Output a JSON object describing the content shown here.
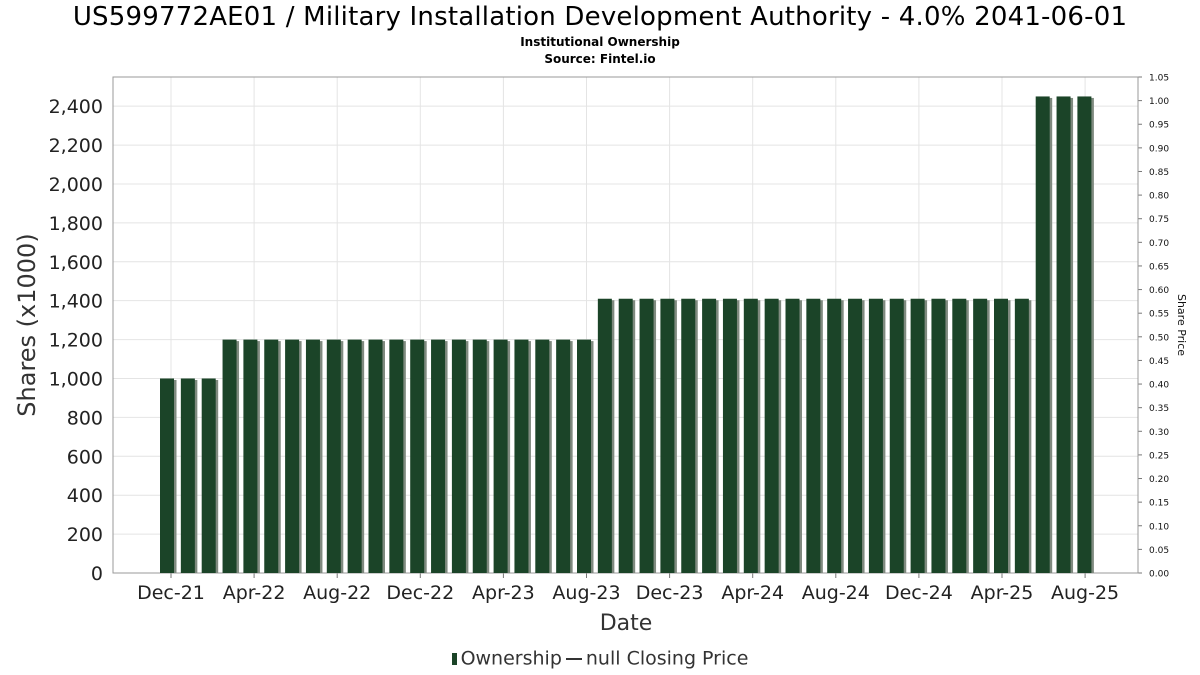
{
  "title": "US599772AE01 / Military Installation Development Authority - 4.0% 2041-06-01",
  "subtitle": "Institutional Ownership",
  "source": "Source: Fintel.io",
  "legend": {
    "ownership": "Ownership",
    "price": "null Closing Price"
  },
  "colors": {
    "bar": "#1b4428",
    "bar_shadow": "#7f8a7f",
    "grid": "#e4e4e4"
  },
  "chart_data": {
    "type": "bar",
    "xlabel": "Date",
    "ylabel": "Shares (x1000)",
    "y2label": "Share Price",
    "ylim": [
      0,
      2550
    ],
    "y2lim": [
      0,
      1.05
    ],
    "yticks": [
      "0",
      "200",
      "400",
      "600",
      "800",
      "1,000",
      "1,200",
      "1,400",
      "1,600",
      "1,800",
      "2,000",
      "2,200",
      "2,400"
    ],
    "y2ticks": [
      "0.00",
      "0.05",
      "0.10",
      "0.15",
      "0.20",
      "0.25",
      "0.30",
      "0.35",
      "0.40",
      "0.45",
      "0.50",
      "0.55",
      "0.60",
      "0.65",
      "0.70",
      "0.75",
      "0.80",
      "0.85",
      "0.90",
      "0.95",
      "1.00",
      "1.05"
    ],
    "xticks": [
      "Dec-21",
      "Apr-22",
      "Aug-22",
      "Dec-22",
      "Apr-23",
      "Aug-23",
      "Dec-23",
      "Apr-24",
      "Aug-24",
      "Dec-24",
      "Apr-25",
      "Aug-25"
    ],
    "series": [
      {
        "name": "Ownership",
        "values": [
          1000,
          1000,
          1000,
          1200,
          1200,
          1200,
          1200,
          1200,
          1200,
          1200,
          1200,
          1200,
          1200,
          1200,
          1200,
          1200,
          1200,
          1200,
          1200,
          1200,
          1200,
          1410,
          1410,
          1410,
          1410,
          1410,
          1410,
          1410,
          1410,
          1410,
          1410,
          1410,
          1410,
          1410,
          1410,
          1410,
          1410,
          1410,
          1410,
          1410,
          1410,
          1410,
          2450,
          2450,
          2450
        ]
      }
    ],
    "grid": true
  }
}
